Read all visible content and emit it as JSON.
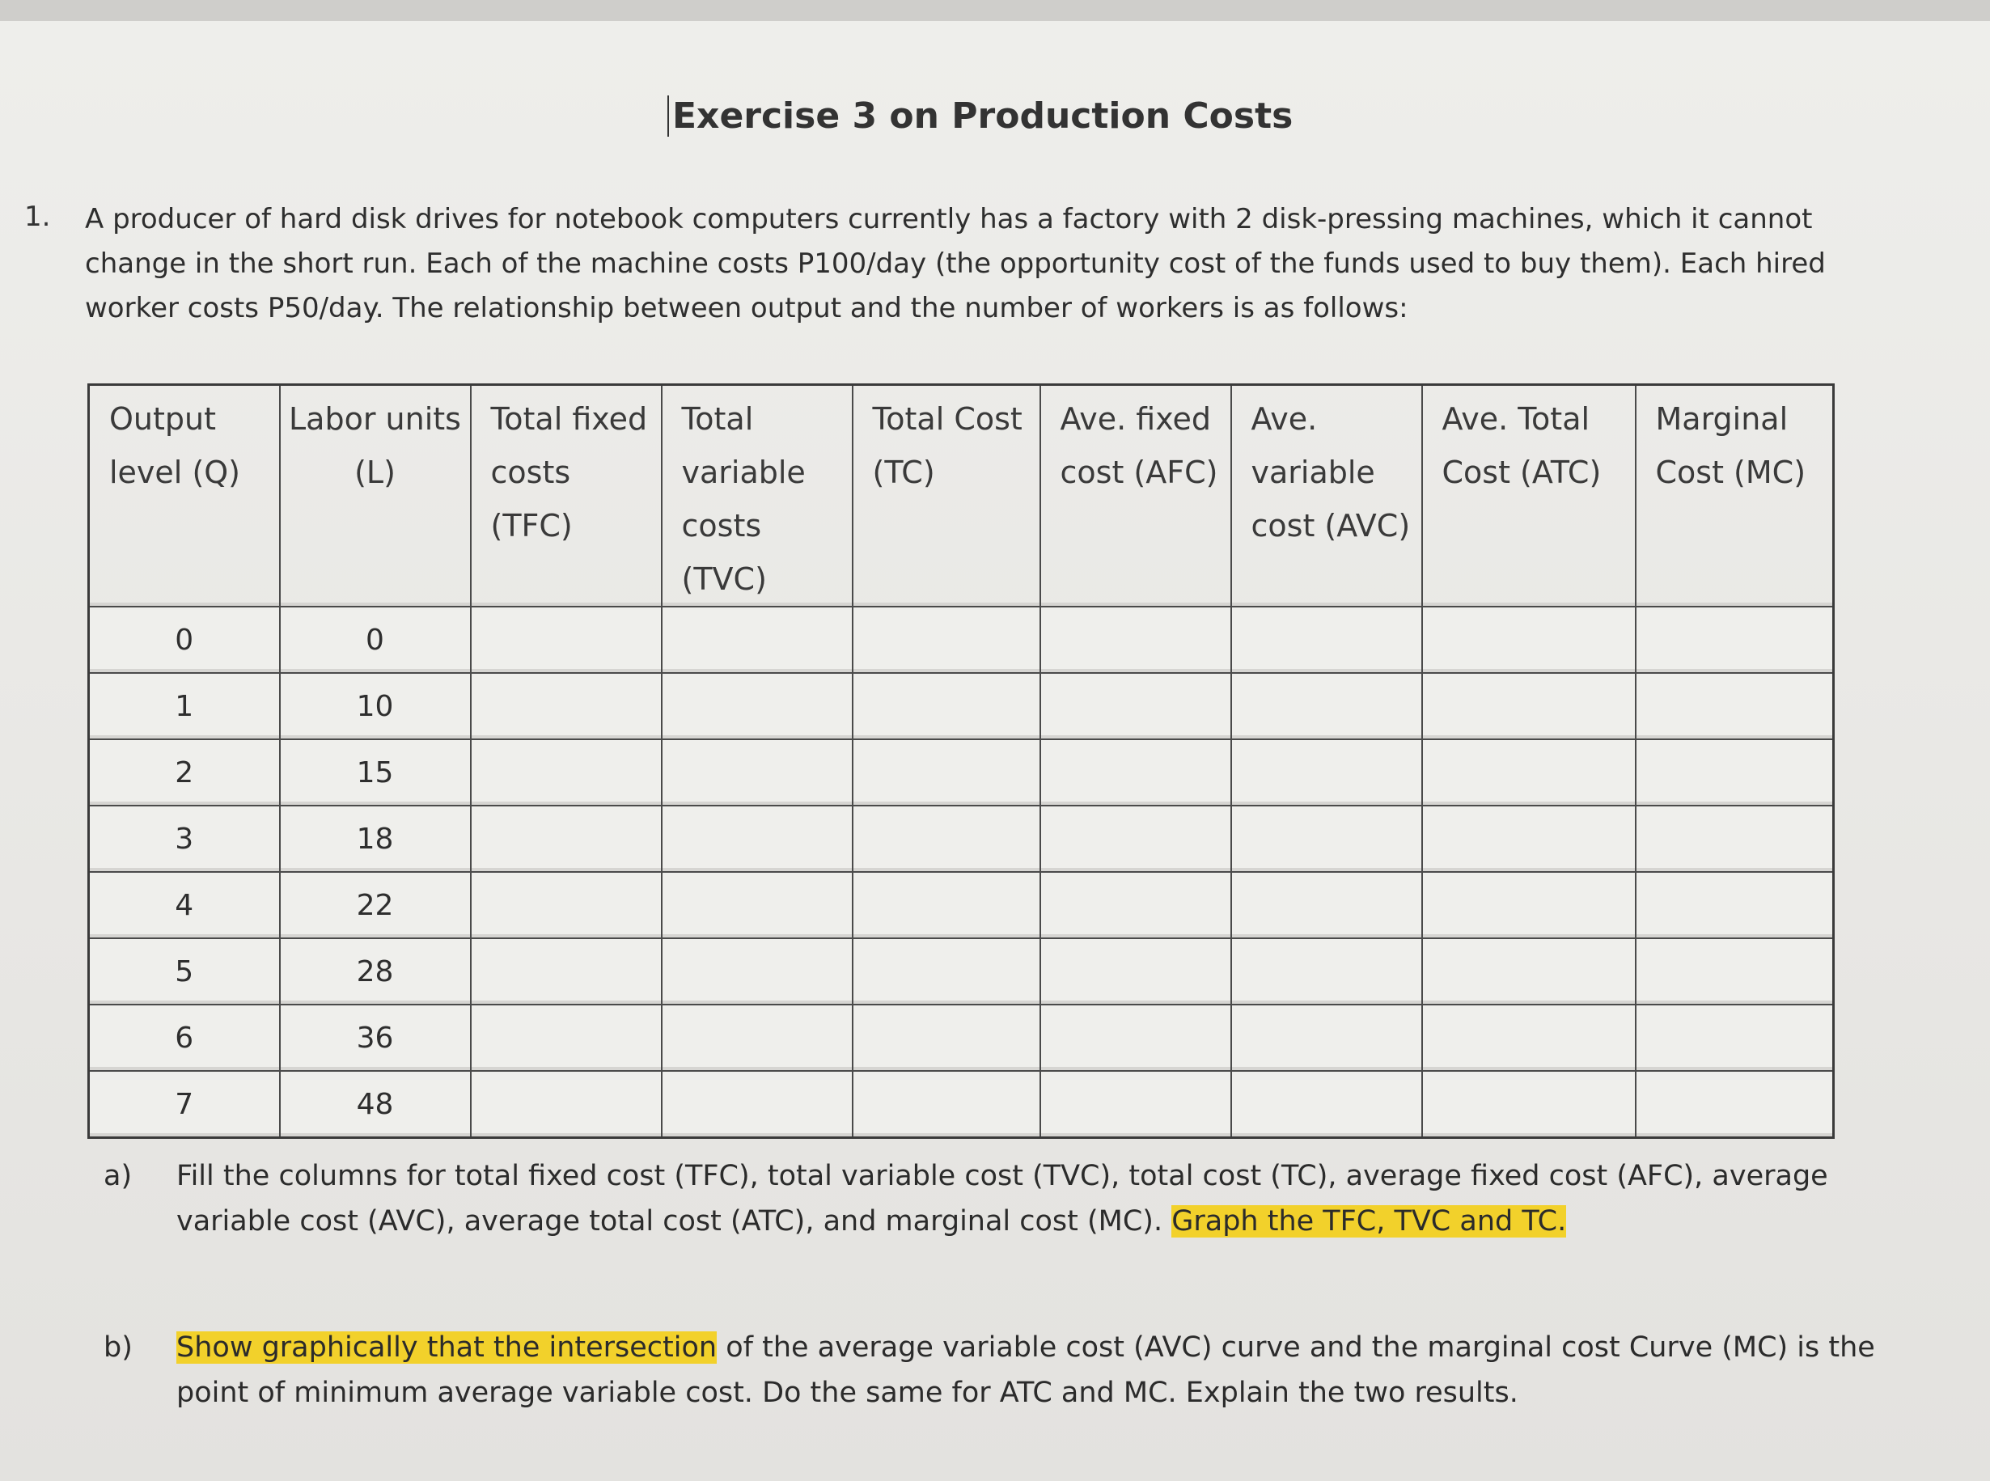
{
  "title": "Exercise 3 on Production Costs",
  "question1": {
    "number": "1.",
    "text": "A producer of hard disk drives for notebook computers currently has a factory with 2 disk-pressing machines, which it cannot change in the short run. Each of the machine costs P100/day (the opportunity cost of the funds used to buy them). Each hired worker costs P50/day. The relationship between output and the number of workers is as follows:"
  },
  "table": {
    "headers": [
      "Output level (Q)",
      "Labor units (L)",
      "Total fixed costs (TFC)",
      "Total variable costs (TVC)",
      "Total Cost (TC)",
      "Ave. fixed cost (AFC)",
      "Ave. variable cost (AVC)",
      "Ave. Total Cost (ATC)",
      "Marginal Cost (MC)"
    ],
    "rows": [
      {
        "q": "0",
        "l": "0"
      },
      {
        "q": "1",
        "l": "10"
      },
      {
        "q": "2",
        "l": "15"
      },
      {
        "q": "3",
        "l": "18"
      },
      {
        "q": "4",
        "l": "22"
      },
      {
        "q": "5",
        "l": "28"
      },
      {
        "q": "6",
        "l": "36"
      },
      {
        "q": "7",
        "l": "48"
      }
    ]
  },
  "parts": {
    "a": {
      "label": "a)",
      "text": "Fill the columns for total fixed cost (TFC), total variable cost (TVC), total cost (TC), average fixed cost (AFC), average variable cost (AVC), average total cost (ATC), and marginal cost (MC).",
      "highlight": "Graph the TFC, TVC and TC."
    },
    "b": {
      "label": "b)",
      "highlight": "Show graphically that the intersection",
      "text": "of the average variable cost (AVC) curve and the marginal cost Curve (MC) is the point of minimum average variable cost. Do the same for ATC and MC. Explain the two results."
    }
  },
  "colors": {
    "highlight": "#f2d12b"
  }
}
